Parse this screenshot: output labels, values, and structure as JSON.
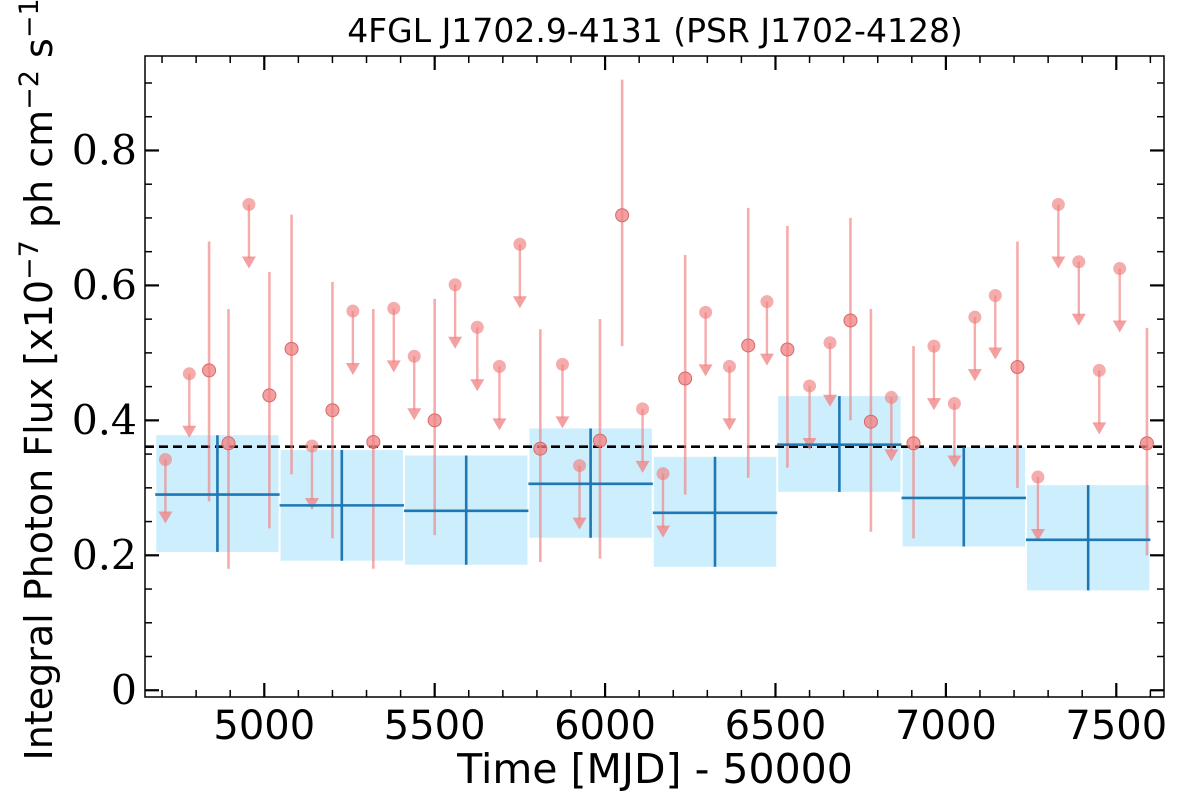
{
  "chart_data": {
    "type": "scatter",
    "title": "4FGL J1702.9-4131 (PSR J1702-4128)",
    "xlabel": "Time [MJD] - 50000",
    "ylabel": "Integral Photon Flux [x10⁻⁷ ph cm⁻² s⁻¹]",
    "xlim": [
      4650,
      7640
    ],
    "ylim": [
      -0.01,
      0.94
    ],
    "xticks": [
      5000,
      5500,
      6000,
      6500,
      7000,
      7500
    ],
    "xtick_labels": [
      "5000",
      "5500",
      "6000",
      "6500",
      "7000",
      "7500"
    ],
    "yticks": [
      0,
      0.2,
      0.4,
      0.6,
      0.8
    ],
    "ytick_labels": [
      "0",
      "0.2",
      "0.4",
      "0.6",
      "0.8"
    ],
    "reference_line": {
      "y": 0.361,
      "style": "dashed"
    },
    "colors": {
      "detection": "#f08080",
      "coarse_band": "#cdeffd",
      "coarse_mark": "#1f77b4",
      "reference": "#000000"
    },
    "series": [
      {
        "kind": "coarse_bins",
        "points": [
          {
            "x0": 4680,
            "x1": 5045,
            "y": 0.29,
            "band_low": 0.205,
            "band_high": 0.378
          },
          {
            "x0": 5045,
            "x1": 5410,
            "y": 0.274,
            "band_low": 0.192,
            "band_high": 0.356
          },
          {
            "x0": 5410,
            "x1": 5775,
            "y": 0.266,
            "band_low": 0.186,
            "band_high": 0.348
          },
          {
            "x0": 5775,
            "x1": 6140,
            "y": 0.306,
            "band_low": 0.226,
            "band_high": 0.388
          },
          {
            "x0": 6140,
            "x1": 6505,
            "y": 0.263,
            "band_low": 0.183,
            "band_high": 0.346
          },
          {
            "x0": 6505,
            "x1": 6870,
            "y": 0.364,
            "band_low": 0.294,
            "band_high": 0.436
          },
          {
            "x0": 6870,
            "x1": 7235,
            "y": 0.285,
            "band_low": 0.213,
            "band_high": 0.36
          },
          {
            "x0": 7235,
            "x1": 7600,
            "y": 0.223,
            "band_low": 0.148,
            "band_high": 0.304
          }
        ]
      },
      {
        "kind": "detections",
        "points": [
          {
            "x": 4838,
            "y": 0.474,
            "err_low": 0.28,
            "err_high": 0.665
          },
          {
            "x": 4895,
            "y": 0.366,
            "err_low": 0.18,
            "err_high": 0.565
          },
          {
            "x": 5015,
            "y": 0.437,
            "err_low": 0.24,
            "err_high": 0.62
          },
          {
            "x": 5080,
            "y": 0.506,
            "err_low": 0.32,
            "err_high": 0.705
          },
          {
            "x": 5200,
            "y": 0.415,
            "err_low": 0.225,
            "err_high": 0.605
          },
          {
            "x": 5320,
            "y": 0.368,
            "err_low": 0.18,
            "err_high": 0.565
          },
          {
            "x": 5500,
            "y": 0.4,
            "err_low": 0.23,
            "err_high": 0.58
          },
          {
            "x": 5810,
            "y": 0.358,
            "err_low": 0.19,
            "err_high": 0.535
          },
          {
            "x": 5985,
            "y": 0.37,
            "err_low": 0.195,
            "err_high": 0.55
          },
          {
            "x": 6050,
            "y": 0.704,
            "err_low": 0.51,
            "err_high": 0.905
          },
          {
            "x": 6235,
            "y": 0.462,
            "err_low": 0.29,
            "err_high": 0.645
          },
          {
            "x": 6420,
            "y": 0.511,
            "err_low": 0.315,
            "err_high": 0.715
          },
          {
            "x": 6535,
            "y": 0.505,
            "err_low": 0.33,
            "err_high": 0.688
          },
          {
            "x": 6720,
            "y": 0.548,
            "err_low": 0.4,
            "err_high": 0.7
          },
          {
            "x": 6780,
            "y": 0.398,
            "err_low": 0.235,
            "err_high": 0.565
          },
          {
            "x": 6905,
            "y": 0.366,
            "err_low": 0.225,
            "err_high": 0.51
          },
          {
            "x": 7210,
            "y": 0.479,
            "err_low": 0.3,
            "err_high": 0.665
          },
          {
            "x": 7590,
            "y": 0.366,
            "err_low": 0.2,
            "err_high": 0.537
          }
        ]
      },
      {
        "kind": "upper_limits",
        "points": [
          {
            "x": 4710,
            "y": 0.342
          },
          {
            "x": 4780,
            "y": 0.469
          },
          {
            "x": 4955,
            "y": 0.72
          },
          {
            "x": 5140,
            "y": 0.362
          },
          {
            "x": 5260,
            "y": 0.562
          },
          {
            "x": 5380,
            "y": 0.566
          },
          {
            "x": 5440,
            "y": 0.495
          },
          {
            "x": 5560,
            "y": 0.601
          },
          {
            "x": 5625,
            "y": 0.538
          },
          {
            "x": 5690,
            "y": 0.48
          },
          {
            "x": 5750,
            "y": 0.661
          },
          {
            "x": 5875,
            "y": 0.483
          },
          {
            "x": 5925,
            "y": 0.333
          },
          {
            "x": 6110,
            "y": 0.417
          },
          {
            "x": 6170,
            "y": 0.321
          },
          {
            "x": 6295,
            "y": 0.56
          },
          {
            "x": 6365,
            "y": 0.48
          },
          {
            "x": 6475,
            "y": 0.576
          },
          {
            "x": 6600,
            "y": 0.451
          },
          {
            "x": 6660,
            "y": 0.515
          },
          {
            "x": 6840,
            "y": 0.434
          },
          {
            "x": 6965,
            "y": 0.51
          },
          {
            "x": 7025,
            "y": 0.425
          },
          {
            "x": 7085,
            "y": 0.553
          },
          {
            "x": 7145,
            "y": 0.585
          },
          {
            "x": 7270,
            "y": 0.316
          },
          {
            "x": 7330,
            "y": 0.72
          },
          {
            "x": 7390,
            "y": 0.635
          },
          {
            "x": 7450,
            "y": 0.474
          },
          {
            "x": 7510,
            "y": 0.625
          }
        ]
      }
    ]
  }
}
